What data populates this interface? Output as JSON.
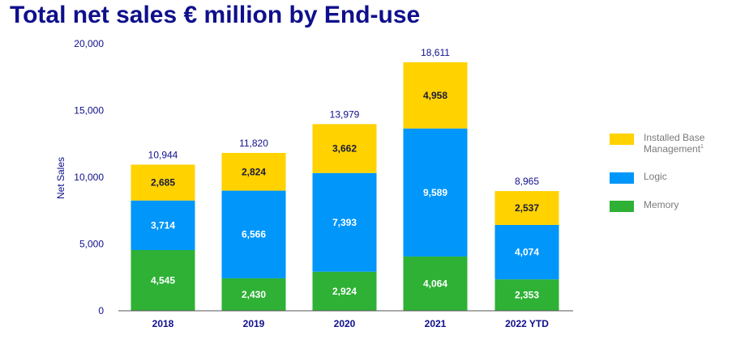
{
  "chart_data": {
    "type": "bar",
    "stacked": true,
    "title": "Total net sales € million by End-use",
    "xlabel": "",
    "ylabel": "Net Sales",
    "ylim": [
      0,
      20000
    ],
    "yticks": [
      "0",
      "5,000",
      "10,000",
      "15,000",
      "20,000"
    ],
    "ytick_values": [
      0,
      5000,
      10000,
      15000,
      20000
    ],
    "categories": [
      "2018",
      "2019",
      "2020",
      "2021",
      "2022 YTD"
    ],
    "series": [
      {
        "name": "Memory",
        "color": "#2eb135",
        "values": [
          4545,
          2430,
          2924,
          4064,
          2353
        ],
        "labels": [
          "4,545",
          "2,430",
          "2,924",
          "4,064",
          "2,353"
        ]
      },
      {
        "name": "Logic",
        "color": "#0096fa",
        "values": [
          3714,
          6566,
          7393,
          9589,
          4074
        ],
        "labels": [
          "3,714",
          "6,566",
          "7,393",
          "9,589",
          "4,074"
        ]
      },
      {
        "name": "Installed Base Management",
        "color": "#ffd200",
        "values": [
          2685,
          2824,
          3662,
          4958,
          2537
        ],
        "labels": [
          "2,685",
          "2,824",
          "3,662",
          "4,958",
          "2,537"
        ]
      }
    ],
    "totals": [
      10944,
      11820,
      13979,
      18611,
      8965
    ],
    "total_labels": [
      "10,944",
      "11,820",
      "13,979",
      "18,611",
      "8,965"
    ],
    "legend": {
      "position": "right",
      "items": [
        {
          "label": "Installed Base",
          "label_line2": "Management",
          "footnote": "1",
          "color": "#ffd200"
        },
        {
          "label": "Logic",
          "color": "#0096fa"
        },
        {
          "label": "Memory",
          "color": "#2eb135"
        }
      ]
    },
    "grid": false
  }
}
